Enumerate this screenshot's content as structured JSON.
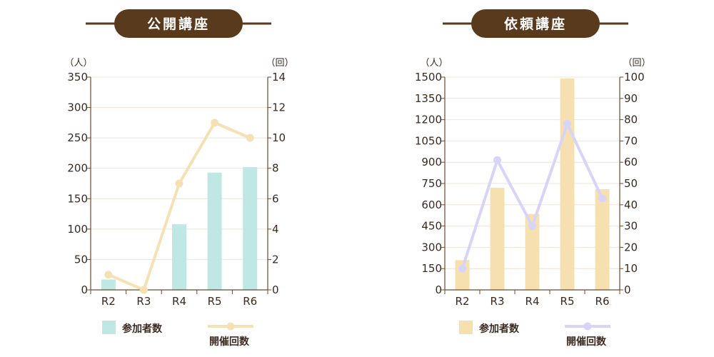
{
  "colors": {
    "title_bg": "#5a3a1c",
    "title_rule": "#5a3a1c",
    "grid": "#ece4d8",
    "axis": "#6b4a2e",
    "public_bar": "#bfe8e4",
    "public_line": "#f5e1b4",
    "request_bar": "#f7e0b0",
    "request_line": "#d8d4f7"
  },
  "chart_data": [
    {
      "type": "bar",
      "title": "公開講座",
      "categories": [
        "R2",
        "R3",
        "R4",
        "R5",
        "R6"
      ],
      "left_unit": "（人）",
      "right_unit": "（回）",
      "left_ylim": [
        0,
        350
      ],
      "left_ticks": [
        0,
        50,
        100,
        150,
        200,
        250,
        300,
        350
      ],
      "right_ylim": [
        0,
        14
      ],
      "right_ticks": [
        0,
        2,
        4,
        6,
        8,
        10,
        12,
        14
      ],
      "grid": true,
      "legend_position": "bottom",
      "series": [
        {
          "name": "参加者数",
          "kind": "bar",
          "axis": "left",
          "values": [
            17,
            0,
            108,
            193,
            202
          ]
        },
        {
          "name": "開催回数",
          "kind": "line",
          "axis": "right",
          "values": [
            1,
            0,
            7,
            11,
            10
          ]
        }
      ]
    },
    {
      "type": "bar",
      "title": "依頼講座",
      "categories": [
        "R2",
        "R3",
        "R4",
        "R5",
        "R6"
      ],
      "left_unit": "（人）",
      "right_unit": "（回）",
      "left_ylim": [
        0,
        1500
      ],
      "left_ticks": [
        0,
        150,
        300,
        450,
        600,
        750,
        900,
        1050,
        1200,
        1350,
        1500
      ],
      "right_ylim": [
        0,
        100
      ],
      "right_ticks": [
        0,
        10,
        20,
        30,
        40,
        50,
        60,
        70,
        80,
        90,
        100
      ],
      "grid": true,
      "legend_position": "bottom",
      "series": [
        {
          "name": "参加者数",
          "kind": "bar",
          "axis": "left",
          "values": [
            210,
            720,
            535,
            1490,
            710
          ]
        },
        {
          "name": "開催回数",
          "kind": "line",
          "axis": "right",
          "values": [
            10,
            61,
            30,
            78,
            43
          ]
        }
      ]
    }
  ]
}
